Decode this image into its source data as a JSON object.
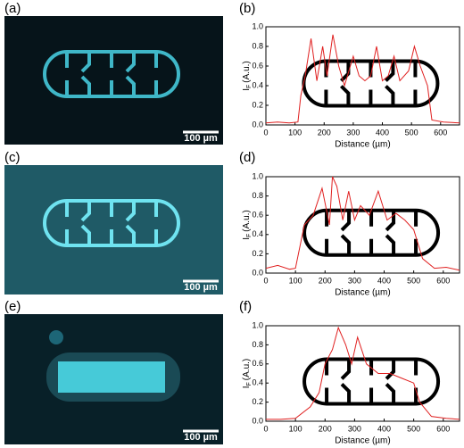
{
  "figure": {
    "panel_labels": [
      "(a)",
      "(b)",
      "(c)",
      "(d)",
      "(e)",
      "(f)"
    ],
    "scale_bar": "100 µm"
  },
  "chart_data": [
    {
      "type": "line",
      "xlabel": "Distance (µm)",
      "ylabel": {
        "main": "I",
        "sub": "F",
        "unit": "(A.u.)"
      },
      "xlim": [
        0,
        665
      ],
      "ylim": [
        0,
        1.0
      ],
      "xticks": [
        0,
        100,
        200,
        300,
        400,
        500,
        600
      ],
      "yticks": [
        {
          "value": 0,
          "label": "0.0"
        },
        0.2,
        0.4,
        0.6,
        0.8,
        {
          "value": 1,
          "label": "1.0"
        }
      ],
      "series": [
        {
          "color": "#e02020",
          "x": [
            0,
            40,
            80,
            110,
            120,
            135,
            155,
            175,
            195,
            210,
            230,
            250,
            270,
            300,
            320,
            340,
            360,
            380,
            400,
            420,
            440,
            460,
            490,
            510,
            530,
            555,
            570,
            610,
            665
          ],
          "values": [
            0.02,
            0.03,
            0.02,
            0.03,
            0.3,
            0.5,
            0.88,
            0.45,
            0.8,
            0.5,
            0.92,
            0.6,
            0.4,
            0.7,
            0.5,
            0.45,
            0.5,
            0.8,
            0.45,
            0.5,
            0.7,
            0.45,
            0.55,
            0.8,
            0.6,
            0.4,
            0.05,
            0.03,
            0.02
          ]
        }
      ]
    },
    {
      "type": "line",
      "xlabel": "Distance (µm)",
      "ylabel": {
        "main": "I",
        "sub": "F",
        "unit": "(A.u.)"
      },
      "xlim": [
        0,
        655
      ],
      "ylim": [
        0,
        1.0
      ],
      "xticks": [
        0,
        100,
        200,
        300,
        400,
        500,
        600
      ],
      "yticks": [
        {
          "value": 0,
          "label": "0.0"
        },
        0.2,
        0.4,
        0.6,
        0.8,
        {
          "value": 1,
          "label": "1.0"
        }
      ],
      "series": [
        {
          "color": "#e02020",
          "x": [
            0,
            40,
            80,
            100,
            130,
            160,
            190,
            215,
            225,
            240,
            260,
            280,
            300,
            320,
            350,
            380,
            410,
            440,
            470,
            500,
            530,
            570,
            610,
            655
          ],
          "values": [
            0.05,
            0.08,
            0.04,
            0.05,
            0.5,
            0.6,
            0.88,
            0.5,
            1.0,
            0.9,
            0.55,
            0.85,
            0.55,
            0.7,
            0.6,
            0.85,
            0.55,
            0.62,
            0.55,
            0.45,
            0.15,
            0.05,
            0.06,
            0.03
          ]
        }
      ]
    },
    {
      "type": "line",
      "xlabel": "Distance (µm)",
      "ylabel": {
        "main": "I",
        "sub": "F",
        "unit": "(A.u.)"
      },
      "xlim": [
        0,
        655
      ],
      "ylim": [
        0,
        1.0
      ],
      "xticks": [
        0,
        100,
        200,
        300,
        400,
        500,
        600
      ],
      "yticks": [
        {
          "value": 0,
          "label": "0.0"
        },
        0.2,
        0.4,
        0.6,
        0.8,
        {
          "value": 1,
          "label": "1.0"
        }
      ],
      "series": [
        {
          "color": "#e02020",
          "x": [
            0,
            50,
            100,
            150,
            180,
            200,
            225,
            245,
            270,
            290,
            310,
            340,
            380,
            420,
            460,
            500,
            520,
            560,
            610,
            655
          ],
          "values": [
            0.02,
            0.02,
            0.03,
            0.15,
            0.3,
            0.6,
            0.75,
            0.98,
            0.8,
            0.6,
            0.88,
            0.6,
            0.5,
            0.5,
            0.45,
            0.4,
            0.2,
            0.05,
            0.03,
            0.02
          ]
        }
      ]
    }
  ]
}
